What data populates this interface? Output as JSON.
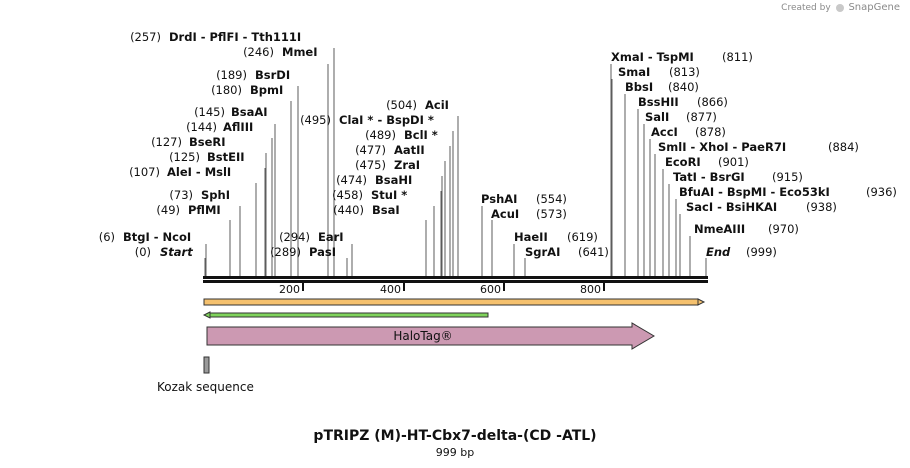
{
  "credit": {
    "prefix": "Created by",
    "brand": "SnapGene"
  },
  "title": "pTRIPZ (M)-HT-Cbx7-delta-(CD -ATL)",
  "subtitle": "999 bp",
  "ruler": {
    "length_bp": 999,
    "ticks": [
      "200",
      "400",
      "600",
      "800"
    ]
  },
  "features": {
    "halotag_label": "HaloTag®",
    "kozak_label": "Kozak sequence"
  },
  "sites": {
    "start": {
      "pos": "(0)",
      "name": "Start"
    },
    "end": {
      "pos": "(999)",
      "name": "End"
    },
    "btgi": {
      "pos": "(6)",
      "name": "BtgI - NcoI"
    },
    "pflmi": {
      "pos": "(49)",
      "name": "PflMI"
    },
    "sphi": {
      "pos": "(73)",
      "name": "SphI"
    },
    "alei": {
      "pos": "(107)",
      "name": "AleI - MslI"
    },
    "bsteii": {
      "pos": "(125)",
      "name": "BstEII"
    },
    "bseri": {
      "pos": "(127)",
      "name": "BseRI"
    },
    "afliii": {
      "pos": "(144)",
      "name": "AflIII"
    },
    "bsaai": {
      "pos": "(145)",
      "name": "BsaAI"
    },
    "bpmi": {
      "pos": "(180)",
      "name": "BpmI"
    },
    "bsrdi": {
      "pos": "(189)",
      "name": "BsrDI"
    },
    "mmei": {
      "pos": "(246)",
      "name": "MmeI"
    },
    "drdi": {
      "pos": "(257)",
      "name": "DrdI - PflFI - Tth111I"
    },
    "pasi": {
      "pos": "(289)",
      "name": "PasI"
    },
    "eari": {
      "pos": "(294)",
      "name": "EarI"
    },
    "bsai": {
      "pos": "(440)",
      "name": "BsaI"
    },
    "stui": {
      "pos": "(458)",
      "name": "StuI *"
    },
    "bsahi": {
      "pos": "(474)",
      "name": "BsaHI"
    },
    "zrai": {
      "pos": "(475)",
      "name": "ZraI"
    },
    "aatii": {
      "pos": "(477)",
      "name": "AatII"
    },
    "bcli": {
      "pos": "(489)",
      "name": "BclI *"
    },
    "clai": {
      "pos": "(495)",
      "name": "ClaI * - BspDI *"
    },
    "acii": {
      "pos": "(504)",
      "name": "AciI"
    },
    "pshai": {
      "pos": "(554)",
      "name": "PshAI"
    },
    "acui": {
      "pos": "(573)",
      "name": "AcuI"
    },
    "haeii": {
      "pos": "(619)",
      "name": "HaeII"
    },
    "sgrai": {
      "pos": "(641)",
      "name": "SgrAI"
    },
    "xmai": {
      "pos": "(811)",
      "name": "XmaI - TspMI"
    },
    "smai": {
      "pos": "(813)",
      "name": "SmaI"
    },
    "bbsi": {
      "pos": "(840)",
      "name": "BbsI"
    },
    "bsshii": {
      "pos": "(866)",
      "name": "BssHII"
    },
    "sali": {
      "pos": "(877)",
      "name": "SalI"
    },
    "acci": {
      "pos": "(878)",
      "name": "AccI"
    },
    "smli": {
      "pos": "(884)",
      "name": "SmlI - XhoI - PaeR7I"
    },
    "ecori": {
      "pos": "(901)",
      "name": "EcoRI"
    },
    "tati": {
      "pos": "(915)",
      "name": "TatI - BsrGI"
    },
    "bfuai": {
      "pos": "(936)",
      "name": "BfuAI - BspMI - Eco53kI"
    },
    "saci": {
      "pos": "(938)",
      "name": "SacI - BsiHKAI"
    },
    "nmeaiii": {
      "pos": "(970)",
      "name": "NmeAIII"
    }
  },
  "colors": {
    "halotag": "#cc99b2",
    "orange_feature": "#f5c16e",
    "green_feature": "#7fd35b"
  }
}
